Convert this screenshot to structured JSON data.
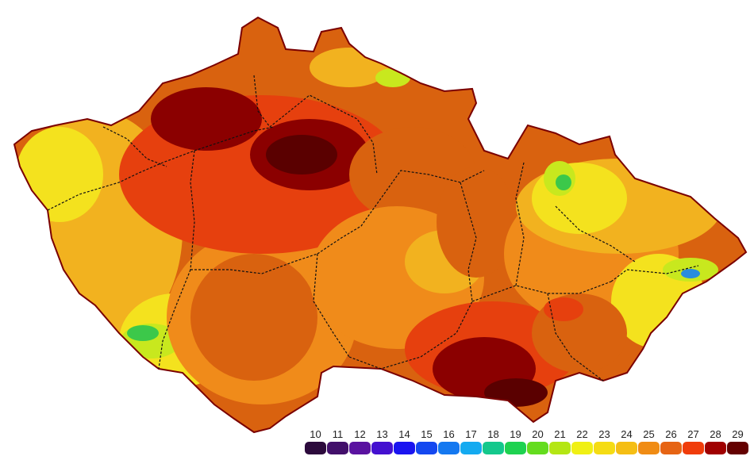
{
  "map": {
    "region_name": "",
    "colors": {
      "hot_core": "#5a0000",
      "very_hot": "#8b0000",
      "hot": "#e6400e",
      "warm": "#d9620f",
      "mild_warm": "#f08b1a",
      "mild": "#f2b21f",
      "cool": "#f4e21e",
      "cooler": "#c8e81e",
      "cold": "#3cc84a",
      "coldest": "#2a8cdc",
      "border": "#111111"
    }
  },
  "legend": {
    "items": [
      {
        "label": "10",
        "color": "#2c0a3c"
      },
      {
        "label": "11",
        "color": "#420f6a"
      },
      {
        "label": "12",
        "color": "#5a12a0"
      },
      {
        "label": "13",
        "color": "#4410d0"
      },
      {
        "label": "14",
        "color": "#1a14f0"
      },
      {
        "label": "15",
        "color": "#1448f0"
      },
      {
        "label": "16",
        "color": "#1478f0"
      },
      {
        "label": "17",
        "color": "#14aaf0"
      },
      {
        "label": "18",
        "color": "#14c88c"
      },
      {
        "label": "19",
        "color": "#1ed250"
      },
      {
        "label": "20",
        "color": "#64dc1e"
      },
      {
        "label": "21",
        "color": "#b4e614"
      },
      {
        "label": "22",
        "color": "#f0f014"
      },
      {
        "label": "23",
        "color": "#f5dc14"
      },
      {
        "label": "24",
        "color": "#f5be14"
      },
      {
        "label": "25",
        "color": "#f08c14"
      },
      {
        "label": "26",
        "color": "#e66414"
      },
      {
        "label": "27",
        "color": "#f03c0a"
      },
      {
        "label": "28",
        "color": "#a00000"
      },
      {
        "label": "29",
        "color": "#640000"
      }
    ]
  }
}
